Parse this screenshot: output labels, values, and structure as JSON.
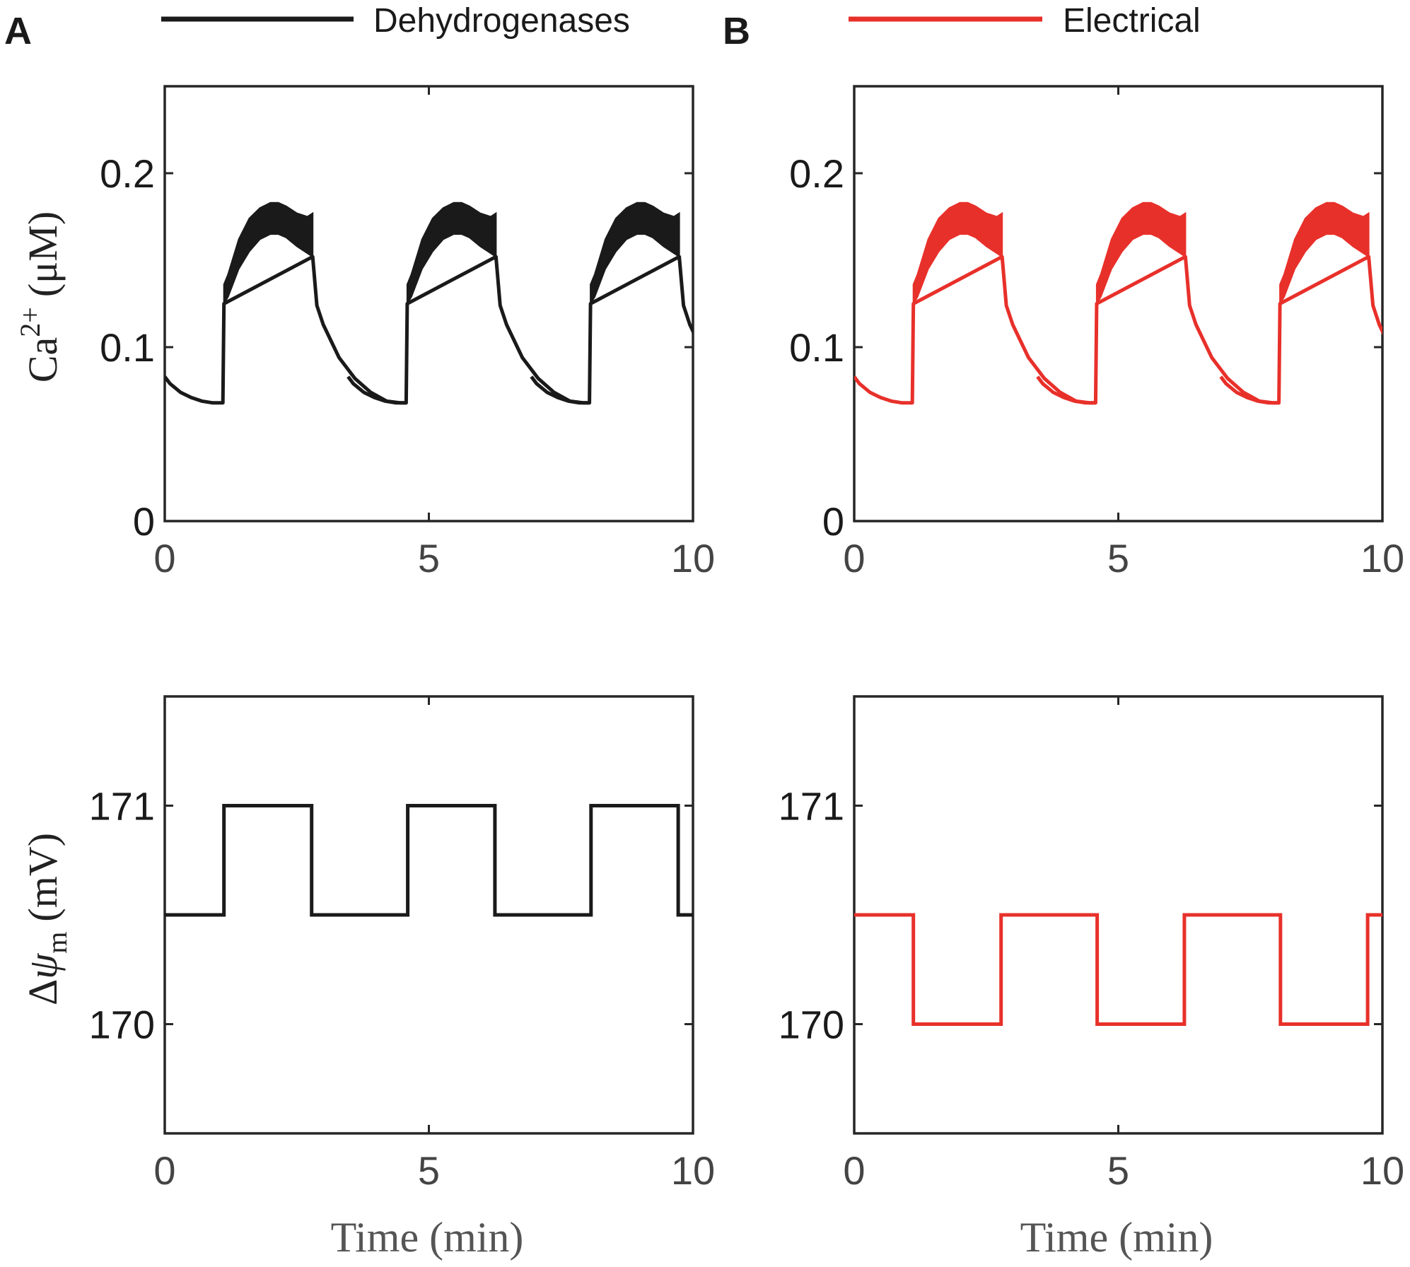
{
  "legend": {
    "panel_a_letter": "A",
    "panel_b_letter": "B",
    "items": [
      {
        "label": "Dehydrogenases",
        "color": "#1a1a1a"
      },
      {
        "label": "Electrical",
        "color": "#e8302a"
      }
    ]
  },
  "axes_labels": {
    "top_ylabel_main": "Ca",
    "top_ylabel_sup": "2+",
    "top_ylabel_unit": "(μM)",
    "bottom_ylabel_delta": "Δ",
    "bottom_ylabel_psi": "ψ",
    "bottom_ylabel_sub": "m",
    "bottom_ylabel_unit": "(mV)",
    "xlabel": "Time (min)"
  },
  "chart_data": [
    {
      "id": "A-top",
      "panel": "A",
      "type": "line",
      "series_name": "Dehydrogenases",
      "color": "#1a1a1a",
      "xlim": [
        0,
        10
      ],
      "ylim": [
        0,
        0.25
      ],
      "xticks": [
        0,
        5,
        10
      ],
      "xtick_labels": [
        "0",
        "5",
        "10"
      ],
      "yticks": [
        0,
        0.1,
        0.2
      ],
      "ytick_labels": [
        "0",
        "0.1",
        "0.2"
      ],
      "ylabel": "Ca2+ (μM)",
      "band": {
        "x": [
          1.12,
          1.2,
          1.4,
          1.6,
          1.8,
          2.0,
          2.15,
          2.3,
          2.5,
          2.7,
          2.8
        ],
        "upper": [
          0.136,
          0.142,
          0.162,
          0.174,
          0.18,
          0.183,
          0.183,
          0.181,
          0.177,
          0.175,
          0.177
        ],
        "lower": [
          0.125,
          0.129,
          0.145,
          0.155,
          0.162,
          0.165,
          0.165,
          0.163,
          0.158,
          0.154,
          0.152
        ]
      },
      "period": 3.47,
      "trace": {
        "x": [
          0,
          0.1,
          0.3,
          0.5,
          0.7,
          0.9,
          1.1,
          1.12,
          2.8,
          2.88,
          3.0,
          3.3,
          3.6,
          3.9,
          4.2,
          4.45,
          4.58
        ],
        "y": [
          0.083,
          0.079,
          0.074,
          0.071,
          0.069,
          0.068,
          0.068,
          0.125,
          0.152,
          0.124,
          0.113,
          0.094,
          0.082,
          0.074,
          0.069,
          0.068,
          0.068
        ]
      }
    },
    {
      "id": "B-top",
      "panel": "B",
      "type": "line",
      "series_name": "Electrical",
      "color": "#e8302a",
      "xlim": [
        0,
        10
      ],
      "ylim": [
        0,
        0.25
      ],
      "xticks": [
        0,
        5,
        10
      ],
      "xtick_labels": [
        "0",
        "5",
        "10"
      ],
      "yticks": [
        0,
        0.1,
        0.2
      ],
      "ytick_labels": [
        "0",
        "0.1",
        "0.2"
      ],
      "ylabel": "",
      "band": {
        "x": [
          1.12,
          1.2,
          1.4,
          1.6,
          1.8,
          2.0,
          2.15,
          2.3,
          2.5,
          2.7,
          2.8
        ],
        "upper": [
          0.136,
          0.142,
          0.162,
          0.174,
          0.18,
          0.183,
          0.183,
          0.181,
          0.177,
          0.175,
          0.177
        ],
        "lower": [
          0.125,
          0.129,
          0.145,
          0.155,
          0.162,
          0.165,
          0.165,
          0.163,
          0.158,
          0.154,
          0.152
        ]
      },
      "period": 3.47,
      "trace": {
        "x": [
          0,
          0.1,
          0.3,
          0.5,
          0.7,
          0.9,
          1.1,
          1.12,
          2.8,
          2.88,
          3.0,
          3.3,
          3.6,
          3.9,
          4.2,
          4.45,
          4.58
        ],
        "y": [
          0.083,
          0.079,
          0.074,
          0.071,
          0.069,
          0.068,
          0.068,
          0.125,
          0.152,
          0.124,
          0.113,
          0.094,
          0.082,
          0.074,
          0.069,
          0.068,
          0.068
        ]
      }
    },
    {
      "id": "A-bottom",
      "panel": "A",
      "type": "line",
      "series_name": "Dehydrogenases",
      "color": "#1a1a1a",
      "xlim": [
        0,
        10
      ],
      "ylim": [
        169.5,
        171.5
      ],
      "xticks": [
        0,
        5,
        10
      ],
      "xtick_labels": [
        "0",
        "5",
        "10"
      ],
      "yticks": [
        170,
        171
      ],
      "ytick_labels": [
        "170",
        "171"
      ],
      "ylabel": "Δψm (mV)",
      "x": [
        0,
        1.12,
        1.12,
        2.78,
        2.78,
        4.6,
        4.6,
        6.25,
        6.25,
        8.07,
        8.07,
        9.72,
        9.72,
        10
      ],
      "y": [
        170.5,
        170.5,
        171,
        171,
        170.5,
        170.5,
        171,
        171,
        170.5,
        170.5,
        171,
        171,
        170.5,
        170.5
      ]
    },
    {
      "id": "B-bottom",
      "panel": "B",
      "type": "line",
      "series_name": "Electrical",
      "color": "#e8302a",
      "xlim": [
        0,
        10
      ],
      "ylim": [
        169.5,
        171.5
      ],
      "xticks": [
        0,
        5,
        10
      ],
      "xtick_labels": [
        "0",
        "5",
        "10"
      ],
      "yticks": [
        170,
        171
      ],
      "ytick_labels": [
        "170",
        "171"
      ],
      "ylabel": "",
      "x": [
        0,
        1.12,
        1.12,
        2.78,
        2.78,
        4.6,
        4.6,
        6.25,
        6.25,
        8.07,
        8.07,
        9.72,
        9.72,
        10
      ],
      "y": [
        170.5,
        170.5,
        170,
        170,
        170.5,
        170.5,
        170,
        170,
        170.5,
        170.5,
        170,
        170,
        170.5,
        170.5
      ]
    }
  ]
}
